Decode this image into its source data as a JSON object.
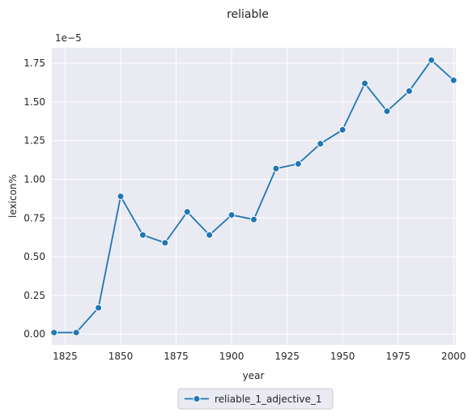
{
  "chart_data": {
    "type": "line",
    "title": "reliable",
    "xlabel": "year",
    "ylabel": "lexicon%",
    "y_scale_label": "1e−5",
    "xlim": [
      1819,
      2001
    ],
    "ylim": [
      -0.07,
      1.85
    ],
    "x_ticks": [
      1825,
      1850,
      1875,
      1900,
      1925,
      1950,
      1975,
      2000
    ],
    "y_ticks": [
      0.0,
      0.25,
      0.5,
      0.75,
      1.0,
      1.25,
      1.5,
      1.75
    ],
    "y_tick_labels": [
      "0.00",
      "0.25",
      "0.50",
      "0.75",
      "1.00",
      "1.25",
      "1.50",
      "1.75"
    ],
    "grid": true,
    "legend_position": "bottom-center",
    "series": [
      {
        "name": "reliable_1_adjective_1",
        "color": "#1f77b4",
        "marker": "circle",
        "x": [
          1820,
          1830,
          1840,
          1850,
          1860,
          1870,
          1880,
          1890,
          1900,
          1910,
          1920,
          1930,
          1940,
          1950,
          1960,
          1970,
          1980,
          1990,
          2000
        ],
        "y": [
          0.01,
          0.01,
          0.17,
          0.89,
          0.64,
          0.59,
          0.79,
          0.64,
          0.77,
          0.74,
          1.07,
          1.1,
          1.23,
          1.32,
          1.62,
          1.44,
          1.57,
          1.77,
          1.64
        ]
      }
    ]
  }
}
